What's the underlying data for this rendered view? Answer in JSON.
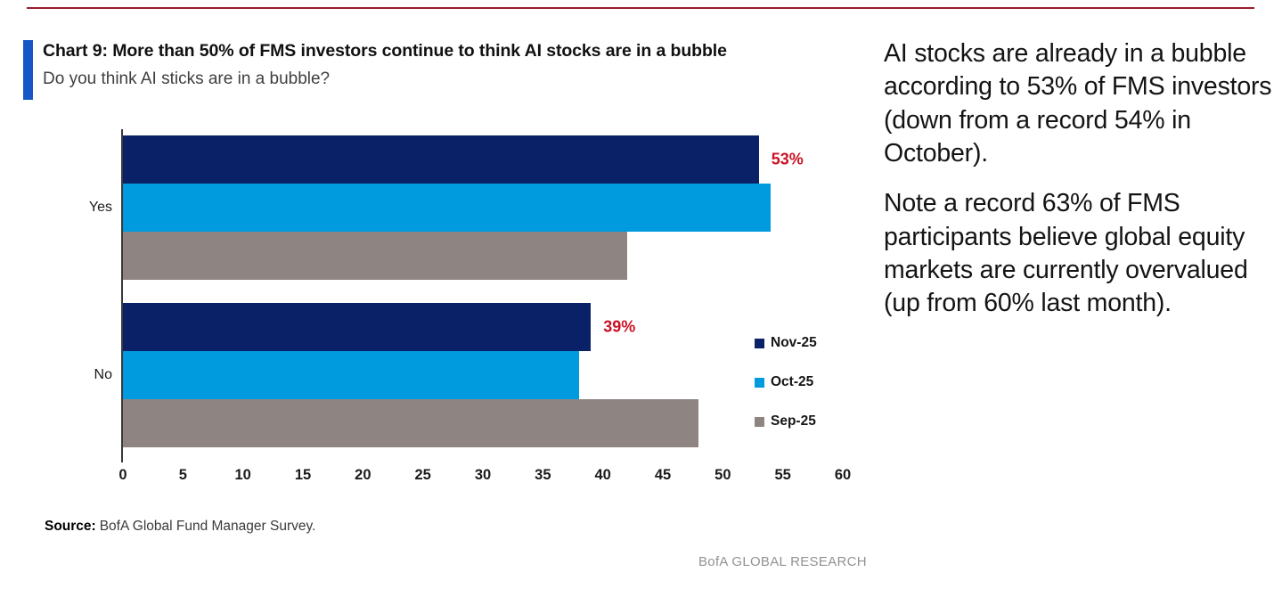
{
  "page": {
    "top_rule_color": "#9A1B2F"
  },
  "header": {
    "title": "Chart 9: More than 50% of FMS investors continue to think AI stocks are in a bubble",
    "subtitle": "Do you think AI sticks are in a bubble?",
    "accent_color": "#1656C5"
  },
  "chart_data": {
    "type": "bar",
    "orientation": "horizontal",
    "categories": [
      "Yes",
      "No"
    ],
    "series": [
      {
        "name": "Nov-25",
        "color": "#0A2167",
        "values": [
          53,
          39
        ]
      },
      {
        "name": "Oct-25",
        "color": "#009BDE",
        "values": [
          54,
          38
        ]
      },
      {
        "name": "Sep-25",
        "color": "#8E8583",
        "values": [
          42,
          48
        ]
      }
    ],
    "xlim": [
      0,
      60
    ],
    "x_ticks": [
      0,
      5,
      10,
      15,
      20,
      25,
      30,
      35,
      40,
      45,
      50,
      55,
      60
    ],
    "grid": false,
    "legend_position": "right",
    "data_labels": [
      {
        "series": "Nov-25",
        "category": "Yes",
        "text": "53%"
      },
      {
        "series": "Nov-25",
        "category": "No",
        "text": "39%"
      }
    ],
    "data_label_color": "#CB1124"
  },
  "source": {
    "label": "Source:",
    "text": "BofA Global Fund Manager Survey."
  },
  "footer": {
    "text": "BofA GLOBAL RESEARCH"
  },
  "commentary": {
    "paragraphs": [
      "AI stocks are already in a bubble according to 53% of FMS investors (down from a record 54% in October).",
      "Note a record 63% of FMS participants believe global equity markets are currently overvalued (up from 60% last month)."
    ]
  }
}
